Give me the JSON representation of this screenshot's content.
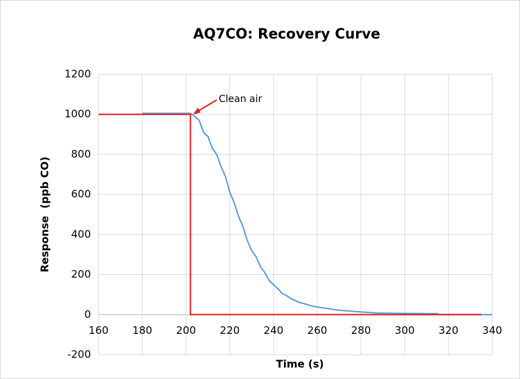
{
  "chart_data": {
    "type": "line",
    "title": "AQ7CO: Recovery Curve",
    "x_label": "Time (s)",
    "y_label": "Response  (ppb CO)",
    "annotation": "Clean air",
    "xlim": [
      160,
      340
    ],
    "xticks": [
      160,
      180,
      200,
      220,
      240,
      260,
      280,
      300,
      320,
      340
    ],
    "ylim": [
      -200,
      1200
    ],
    "yticks": [
      -200,
      0,
      200,
      400,
      600,
      800,
      1000,
      1200
    ],
    "grid": true,
    "series": [
      {
        "color": "#5b9bd5",
        "x": [
          180,
          202,
          204,
          206,
          208,
          210,
          212,
          214,
          216,
          218,
          220,
          222,
          224,
          226,
          228,
          230,
          232,
          234,
          236,
          238,
          240,
          242,
          244,
          246,
          248,
          250,
          252,
          254,
          256,
          258,
          260,
          265,
          270,
          278,
          288,
          300,
          315,
          316,
          340
        ],
        "values": [
          1005,
          1005,
          990,
          970,
          910,
          890,
          830,
          800,
          740,
          690,
          610,
          560,
          490,
          440,
          370,
          320,
          290,
          240,
          210,
          170,
          150,
          130,
          105,
          95,
          80,
          70,
          60,
          55,
          48,
          42,
          38,
          30,
          22,
          15,
          8,
          6,
          5,
          0,
          0
        ]
      },
      {
        "color": "#e0201f",
        "x": [
          160,
          202,
          202,
          335
        ],
        "values": [
          1000,
          1000,
          0,
          0
        ]
      }
    ]
  }
}
